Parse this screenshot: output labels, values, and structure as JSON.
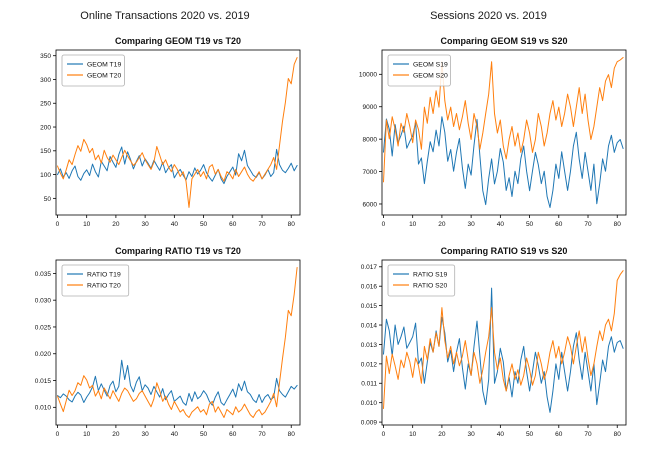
{
  "page": {
    "left_header": "Online Transactions 2020 vs. 2019",
    "right_header": "Sessions 2020 vs. 2019"
  },
  "colors": {
    "series_blue": "#1f77b4",
    "series_orange": "#ff7f0e",
    "axis": "#000000",
    "legend_border": "#b0b0b0"
  },
  "chart_data": [
    {
      "type": "line",
      "title": "Comparing GEOM T19 vs T20",
      "legend_position": "upper-left",
      "grid": false,
      "xlim": [
        -0.5,
        83
      ],
      "ylim": [
        15,
        362
      ],
      "xticks": [
        0,
        10,
        20,
        30,
        40,
        50,
        60,
        70,
        80
      ],
      "yticks": [
        50,
        100,
        150,
        200,
        250,
        300,
        350
      ],
      "ytick_labels": [
        "50",
        "100",
        "150",
        "200",
        "250",
        "300",
        "350"
      ],
      "series": [
        {
          "name": "GEOM T19",
          "color": "#1f77b4",
          "values": [
            100,
            112,
            95,
            104,
            92,
            108,
            118,
            96,
            88,
            102,
            110,
            98,
            122,
            106,
            95,
            128,
            118,
            108,
            138,
            126,
            115,
            142,
            158,
            122,
            148,
            132,
            112,
            128,
            140,
            118,
            133,
            124,
            113,
            130,
            119,
            109,
            126,
            104,
            114,
            121,
            93,
            104,
            111,
            99,
            89,
            106,
            96,
            114,
            101,
            109,
            121,
            104,
            94,
            86,
            99,
            111,
            91,
            81,
            96,
            106,
            116,
            99,
            144,
            129,
            151,
            119,
            109,
            99,
            94,
            104,
            91,
            99,
            111,
            96,
            104,
            153,
            121,
            109,
            104,
            113,
            124,
            108,
            119
          ]
        },
        {
          "name": "GEOM T20",
          "color": "#ff7f0e",
          "values": [
            118,
            103,
            91,
            110,
            131,
            121,
            142,
            161,
            149,
            174,
            163,
            146,
            155,
            131,
            141,
            124,
            151,
            136,
            126,
            141,
            131,
            121,
            136,
            151,
            139,
            129,
            119,
            126,
            136,
            146,
            131,
            121,
            111,
            126,
            159,
            141,
            121,
            131,
            116,
            106,
            121,
            111,
            96,
            106,
            86,
            31,
            91,
            101,
            111,
            96,
            106,
            91,
            116,
            121,
            101,
            111,
            96,
            86,
            106,
            101,
            91,
            111,
            96,
            106,
            116,
            101,
            91,
            86,
            96,
            106,
            91,
            101,
            111,
            121,
            136,
            111,
            161,
            212,
            252,
            302,
            291,
            332,
            346
          ]
        }
      ]
    },
    {
      "type": "line",
      "title": "Comparing GEOM S19 vs S20",
      "legend_position": "upper-left",
      "grid": false,
      "xlim": [
        -0.5,
        83
      ],
      "ylim": [
        5660,
        10750
      ],
      "xticks": [
        0,
        10,
        20,
        30,
        40,
        50,
        60,
        70,
        80
      ],
      "yticks": [
        6000,
        7000,
        8000,
        9000,
        10000
      ],
      "ytick_labels": [
        "6000",
        "7000",
        "8000",
        "9000",
        "10000"
      ],
      "series": [
        {
          "name": "GEOM S19",
          "color": "#1f77b4",
          "values": [
            7600,
            8620,
            8310,
            7480,
            8450,
            7890,
            8120,
            8400,
            7720,
            7930,
            8100,
            8520,
            7230,
            7420,
            6630,
            7310,
            7920,
            7610,
            8280,
            7790,
            8690,
            8210,
            7320,
            7680,
            7010,
            7590,
            8020,
            7110,
            6480,
            7230,
            6890,
            7810,
            8610,
            7480,
            6410,
            5980,
            6790,
            7390,
            6620,
            7010,
            7710,
            7290,
            6420,
            6810,
            6230,
            7010,
            6630,
            7390,
            7790,
            7010,
            6410,
            7020,
            7590,
            7210,
            6630,
            7010,
            6230,
            5890,
            6420,
            7230,
            6790,
            7610,
            7010,
            6420,
            7010,
            7790,
            8210,
            7390,
            6790,
            7590,
            7010,
            6420,
            7230,
            6010,
            6630,
            7390,
            7010,
            7790,
            8120,
            7590,
            7890,
            7990,
            7710
          ]
        },
        {
          "name": "GEOM S20",
          "color": "#ff7f0e",
          "values": [
            6680,
            8590,
            8010,
            8690,
            8310,
            7790,
            8490,
            8210,
            8790,
            8390,
            7890,
            8590,
            8290,
            7690,
            8990,
            8490,
            9290,
            8790,
            9490,
            8990,
            10390,
            9190,
            8590,
            8990,
            8390,
            8790,
            8290,
            8690,
            9190,
            8490,
            7990,
            8790,
            8390,
            7690,
            8190,
            8790,
            9390,
            10390,
            8790,
            8190,
            8590,
            7790,
            7390,
            7990,
            8390,
            7790,
            8190,
            7590,
            7990,
            8590,
            8190,
            7590,
            7990,
            8790,
            8390,
            7790,
            8190,
            8790,
            9190,
            8590,
            8990,
            8390,
            8790,
            9390,
            8990,
            8390,
            8990,
            9590,
            8790,
            9390,
            8590,
            7990,
            8390,
            8990,
            9590,
            9190,
            9790,
            9990,
            9590,
            10190,
            10390,
            10440,
            10520
          ]
        }
      ]
    },
    {
      "type": "line",
      "title": "Comparing RATIO T19 vs T20",
      "legend_position": "upper-left",
      "grid": false,
      "xlim": [
        -0.5,
        83
      ],
      "ylim": [
        0.0067,
        0.0375
      ],
      "xticks": [
        0,
        10,
        20,
        30,
        40,
        50,
        60,
        70,
        80
      ],
      "yticks": [
        0.01,
        0.015,
        0.02,
        0.025,
        0.03,
        0.035
      ],
      "ytick_labels": [
        "0.010",
        "0.015",
        "0.020",
        "0.025",
        "0.030",
        "0.035"
      ],
      "series": [
        {
          "name": "RATIO T19",
          "color": "#1f77b4",
          "values": [
            0.0122,
            0.0118,
            0.0125,
            0.0121,
            0.0114,
            0.011,
            0.0121,
            0.0128,
            0.0123,
            0.0109,
            0.0119,
            0.0127,
            0.0138,
            0.0158,
            0.0131,
            0.0144,
            0.0132,
            0.0121,
            0.0141,
            0.0149,
            0.0129,
            0.0139,
            0.0188,
            0.0152,
            0.0178,
            0.0141,
            0.0129,
            0.0147,
            0.0157,
            0.0131,
            0.0142,
            0.0136,
            0.0124,
            0.0139,
            0.0129,
            0.0119,
            0.0135,
            0.0114,
            0.0124,
            0.0131,
            0.0111,
            0.0116,
            0.0121,
            0.0109,
            0.0104,
            0.0126,
            0.0111,
            0.0129,
            0.0116,
            0.0121,
            0.0131,
            0.0124,
            0.0111,
            0.0104,
            0.0119,
            0.0129,
            0.0109,
            0.0104,
            0.0114,
            0.0124,
            0.0134,
            0.0119,
            0.0144,
            0.0131,
            0.0149,
            0.0129,
            0.0124,
            0.0114,
            0.0109,
            0.0124,
            0.0109,
            0.0119,
            0.0124,
            0.0114,
            0.0119,
            0.0154,
            0.0131,
            0.0124,
            0.0119,
            0.0129,
            0.0139,
            0.0134,
            0.0141
          ]
        },
        {
          "name": "RATIO T20",
          "color": "#ff7f0e",
          "values": [
            0.0121,
            0.0106,
            0.0092,
            0.0112,
            0.0132,
            0.0122,
            0.0131,
            0.0146,
            0.0141,
            0.0159,
            0.0151,
            0.0136,
            0.0141,
            0.0121,
            0.0131,
            0.0116,
            0.0136,
            0.0126,
            0.0116,
            0.0131,
            0.0121,
            0.0111,
            0.0126,
            0.0136,
            0.0131,
            0.0121,
            0.0111,
            0.0116,
            0.0126,
            0.0131,
            0.0121,
            0.0111,
            0.0101,
            0.0116,
            0.0146,
            0.0131,
            0.0111,
            0.0121,
            0.0106,
            0.0096,
            0.0111,
            0.0101,
            0.0091,
            0.0096,
            0.0086,
            0.0081,
            0.0091,
            0.0096,
            0.0101,
            0.0091,
            0.0096,
            0.0086,
            0.0106,
            0.0111,
            0.0091,
            0.0101,
            0.0091,
            0.0081,
            0.0096,
            0.0091,
            0.0086,
            0.0101,
            0.0091,
            0.0096,
            0.0106,
            0.0096,
            0.0086,
            0.0081,
            0.0091,
            0.0096,
            0.0086,
            0.0091,
            0.0101,
            0.0111,
            0.0126,
            0.0101,
            0.0146,
            0.0191,
            0.0231,
            0.0281,
            0.0271,
            0.0311,
            0.0361
          ]
        }
      ]
    },
    {
      "type": "line",
      "title": "Comparing RATIO S19 vs S20",
      "legend_position": "upper-left",
      "grid": false,
      "xlim": [
        -0.5,
        83
      ],
      "ylim": [
        0.00885,
        0.01735
      ],
      "xticks": [
        0,
        10,
        20,
        30,
        40,
        50,
        60,
        70,
        80
      ],
      "yticks": [
        0.009,
        0.01,
        0.011,
        0.012,
        0.013,
        0.014,
        0.015,
        0.016,
        0.017
      ],
      "ytick_labels": [
        "0.009",
        "0.010",
        "0.011",
        "0.012",
        "0.013",
        "0.014",
        "0.015",
        "0.016",
        "0.017"
      ],
      "series": [
        {
          "name": "RATIO S19",
          "color": "#1f77b4",
          "values": [
            0.0125,
            0.0143,
            0.0137,
            0.0124,
            0.014,
            0.013,
            0.0134,
            0.0139,
            0.0128,
            0.0131,
            0.0134,
            0.0141,
            0.012,
            0.0123,
            0.011,
            0.0121,
            0.0131,
            0.0126,
            0.0137,
            0.0129,
            0.0144,
            0.0136,
            0.0121,
            0.0127,
            0.0116,
            0.0126,
            0.0133,
            0.0118,
            0.0107,
            0.012,
            0.0114,
            0.0129,
            0.0142,
            0.0124,
            0.0106,
            0.0099,
            0.0112,
            0.0159,
            0.011,
            0.0116,
            0.0128,
            0.0121,
            0.0106,
            0.0113,
            0.0103,
            0.0116,
            0.011,
            0.0122,
            0.0129,
            0.0116,
            0.0106,
            0.0116,
            0.0126,
            0.0119,
            0.011,
            0.0116,
            0.0103,
            0.0095,
            0.0106,
            0.012,
            0.0112,
            0.0126,
            0.0116,
            0.0106,
            0.0116,
            0.0129,
            0.0136,
            0.0122,
            0.0112,
            0.0126,
            0.0116,
            0.0106,
            0.012,
            0.0099,
            0.011,
            0.0122,
            0.0116,
            0.0129,
            0.0134,
            0.0126,
            0.0131,
            0.0132,
            0.0128
          ]
        },
        {
          "name": "RATIO S20",
          "color": "#ff7f0e",
          "values": [
            0.0097,
            0.0124,
            0.0115,
            0.0125,
            0.0119,
            0.0112,
            0.0122,
            0.0118,
            0.0126,
            0.0121,
            0.0113,
            0.0123,
            0.0119,
            0.011,
            0.0129,
            0.0122,
            0.0133,
            0.0126,
            0.0136,
            0.0129,
            0.0149,
            0.0132,
            0.0123,
            0.0129,
            0.012,
            0.0126,
            0.0119,
            0.0124,
            0.0132,
            0.0122,
            0.0114,
            0.0126,
            0.012,
            0.011,
            0.0117,
            0.0126,
            0.0134,
            0.0149,
            0.0126,
            0.0117,
            0.0123,
            0.0112,
            0.0106,
            0.0114,
            0.012,
            0.0112,
            0.0117,
            0.0109,
            0.0114,
            0.0123,
            0.0117,
            0.0109,
            0.0114,
            0.0126,
            0.012,
            0.0112,
            0.0117,
            0.0126,
            0.0132,
            0.0123,
            0.0129,
            0.012,
            0.0126,
            0.0134,
            0.0129,
            0.012,
            0.0129,
            0.0137,
            0.0126,
            0.0134,
            0.0123,
            0.0114,
            0.012,
            0.0129,
            0.0137,
            0.0132,
            0.014,
            0.0143,
            0.0137,
            0.0146,
            0.0163,
            0.0166,
            0.0168
          ]
        }
      ]
    }
  ]
}
